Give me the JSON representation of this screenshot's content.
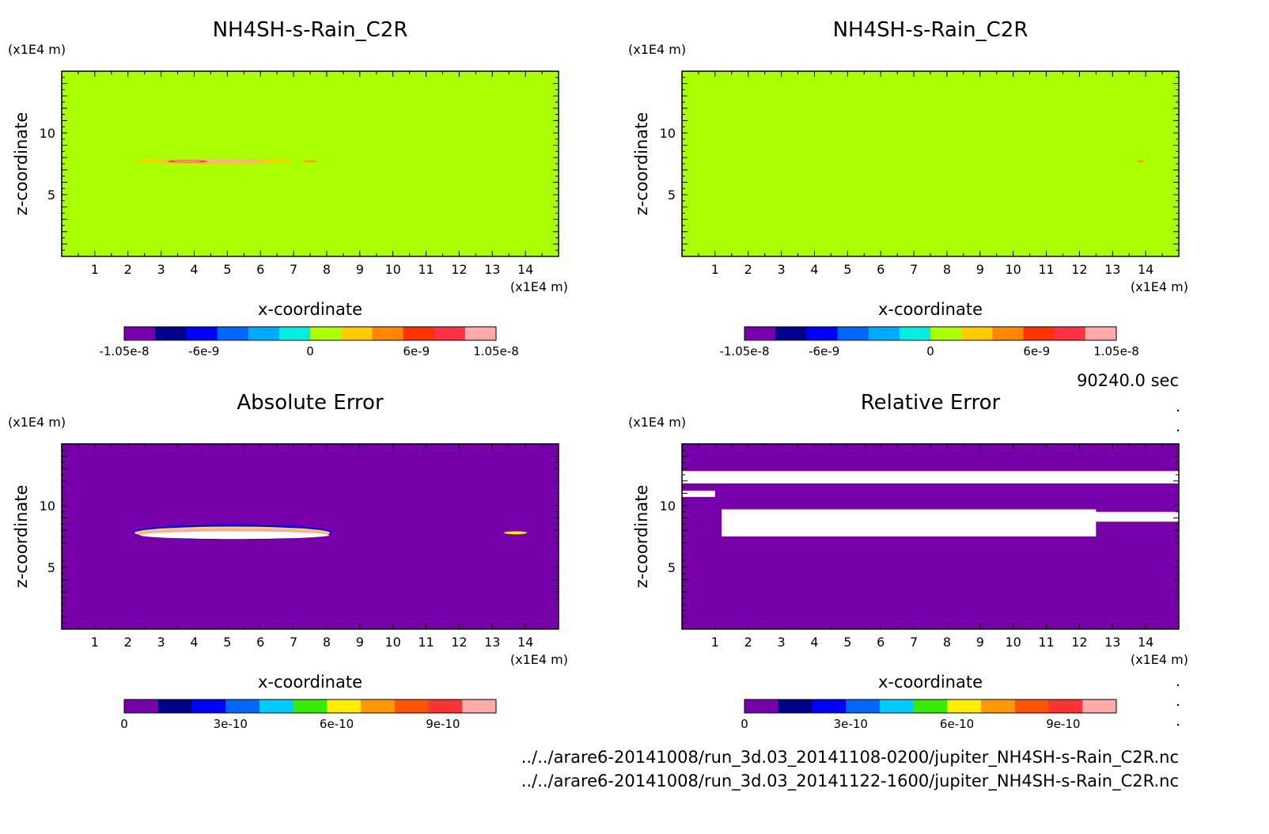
{
  "time_label": "90240.0 sec",
  "files": [
    "../../arare6-20141008/run_3d.03_20141108-0200/jupiter_NH4SH-s-Rain_C2R.nc",
    "../../arare6-20141008/run_3d.03_20141122-1600/jupiter_NH4SH-s-Rain_C2R.nc"
  ],
  "chart_data": [
    {
      "type": "heatmap",
      "title": "NH4SH-s-Rain_C2R",
      "xlabel": "x-coordinate",
      "ylabel": "z-coordinate",
      "x_unit": "(x1E4 m)",
      "y_unit": "(x1E4 m)",
      "xlim": [
        0,
        15
      ],
      "ylim": [
        0,
        15
      ],
      "x_ticks": [
        1,
        2,
        3,
        4,
        5,
        6,
        7,
        8,
        9,
        10,
        11,
        12,
        13,
        14
      ],
      "y_ticks": [
        5,
        10
      ],
      "background_value": 0,
      "features": [
        {
          "shape": "streak",
          "x": [
            2.2,
            7.0
          ],
          "z": [
            7.5,
            7.9
          ],
          "value_range": [
            3e-09,
            1.05e-08
          ]
        },
        {
          "shape": "streak",
          "x": [
            3.2,
            4.4
          ],
          "z": [
            7.6,
            7.8
          ],
          "value_range": [
            7.5e-09,
            1.05e-08
          ]
        },
        {
          "shape": "dot",
          "x": [
            7.2,
            7.8
          ],
          "z": [
            7.6,
            7.8
          ],
          "value_range": [
            3e-09,
            4.5e-09
          ]
        }
      ],
      "colorbar": {
        "colors": [
          "#7700aa",
          "#00008b",
          "#0000ff",
          "#0066ff",
          "#00aaff",
          "#00eedd",
          "#aaff00",
          "#ffcc00",
          "#ff8800",
          "#ff3300",
          "#ff3344",
          "#ffaaaa"
        ],
        "tick_labels": [
          "-1.05e-8",
          "-6e-9",
          "0",
          "6e-9",
          "1.05e-8"
        ],
        "tick_values": [
          -1.05e-08,
          -6e-09,
          0,
          6e-09,
          1.05e-08
        ],
        "range": [
          -1.05e-08,
          1.05e-08
        ]
      }
    },
    {
      "type": "heatmap",
      "title": "NH4SH-s-Rain_C2R",
      "xlabel": "x-coordinate",
      "ylabel": "z-coordinate",
      "x_unit": "(x1E4 m)",
      "y_unit": "(x1E4 m)",
      "xlim": [
        0,
        15
      ],
      "ylim": [
        0,
        15
      ],
      "x_ticks": [
        1,
        2,
        3,
        4,
        5,
        6,
        7,
        8,
        9,
        10,
        11,
        12,
        13,
        14
      ],
      "y_ticks": [
        5,
        10
      ],
      "background_value": 0,
      "features": [
        {
          "shape": "dot",
          "x": [
            13.7,
            14.0
          ],
          "z": [
            7.6,
            7.8
          ],
          "value_range": [
            3e-09,
            4.5e-09
          ]
        }
      ],
      "colorbar": {
        "colors": [
          "#7700aa",
          "#00008b",
          "#0000ff",
          "#0066ff",
          "#00aaff",
          "#00eedd",
          "#aaff00",
          "#ffcc00",
          "#ff8800",
          "#ff3300",
          "#ff3344",
          "#ffaaaa"
        ],
        "tick_labels": [
          "-1.05e-8",
          "-6e-9",
          "0",
          "6e-9",
          "1.05e-8"
        ],
        "tick_values": [
          -1.05e-08,
          -6e-09,
          0,
          6e-09,
          1.05e-08
        ],
        "range": [
          -1.05e-08,
          1.05e-08
        ]
      }
    },
    {
      "type": "heatmap",
      "title": "Absolute Error",
      "xlabel": "x-coordinate",
      "ylabel": "z-coordinate",
      "x_unit": "(x1E4 m)",
      "y_unit": "(x1E4 m)",
      "xlim": [
        0,
        15
      ],
      "ylim": [
        0,
        15
      ],
      "x_ticks": [
        1,
        2,
        3,
        4,
        5,
        6,
        7,
        8,
        9,
        10,
        11,
        12,
        13,
        14
      ],
      "y_ticks": [
        5,
        10
      ],
      "background_value": 0,
      "features": [
        {
          "shape": "band",
          "x": [
            2.2,
            8.1
          ],
          "z": [
            7.3,
            8.3
          ],
          "value_range": [
            0,
            1.05e-09
          ],
          "core": "above-range"
        },
        {
          "shape": "dot",
          "x": [
            13.2,
            14.2
          ],
          "z": [
            7.6,
            8.0
          ],
          "value_range": [
            0,
            6e-10
          ]
        }
      ],
      "colorbar": {
        "colors": [
          "#7700aa",
          "#00008b",
          "#0000ff",
          "#0066ff",
          "#00ccff",
          "#33ee00",
          "#ffee00",
          "#ff9900",
          "#ff5500",
          "#ff3333",
          "#ffaaaa"
        ],
        "tick_labels": [
          "0",
          "3e-10",
          "6e-10",
          "9e-10"
        ],
        "tick_values": [
          0,
          3e-10,
          6e-10,
          9e-10
        ],
        "range": [
          0,
          1.05e-09
        ]
      }
    },
    {
      "type": "heatmap",
      "title": "Relative Error",
      "xlabel": "x-coordinate",
      "ylabel": "z-coordinate",
      "x_unit": "(x1E4 m)",
      "y_unit": "(x1E4 m)",
      "xlim": [
        0,
        15
      ],
      "ylim": [
        0,
        15
      ],
      "x_ticks": [
        1,
        2,
        3,
        4,
        5,
        6,
        7,
        8,
        9,
        10,
        11,
        12,
        13,
        14
      ],
      "y_ticks": [
        5,
        10
      ],
      "background_value": 0,
      "features": [
        {
          "shape": "blank",
          "x": [
            0.0,
            15.0
          ],
          "z": [
            11.8,
            12.8
          ],
          "value": "undefined"
        },
        {
          "shape": "blank",
          "x": [
            0.0,
            1.0
          ],
          "z": [
            10.7,
            11.2
          ],
          "value": "undefined"
        },
        {
          "shape": "blank",
          "x": [
            1.2,
            12.5
          ],
          "z": [
            7.5,
            9.7
          ],
          "value": "undefined"
        },
        {
          "shape": "blank",
          "x": [
            11.6,
            15.0
          ],
          "z": [
            8.7,
            9.5
          ],
          "value": "undefined"
        }
      ],
      "colorbar": {
        "colors": [
          "#7700aa",
          "#00008b",
          "#0000ff",
          "#0066ff",
          "#00ccff",
          "#33ee00",
          "#ffee00",
          "#ff9900",
          "#ff5500",
          "#ff3333",
          "#ffaaaa"
        ],
        "tick_labels": [
          "0",
          "3e-10",
          "6e-10",
          "9e-10"
        ],
        "tick_values": [
          0,
          3e-10,
          6e-10,
          9e-10
        ],
        "range": [
          0,
          1.05e-09
        ]
      }
    }
  ]
}
